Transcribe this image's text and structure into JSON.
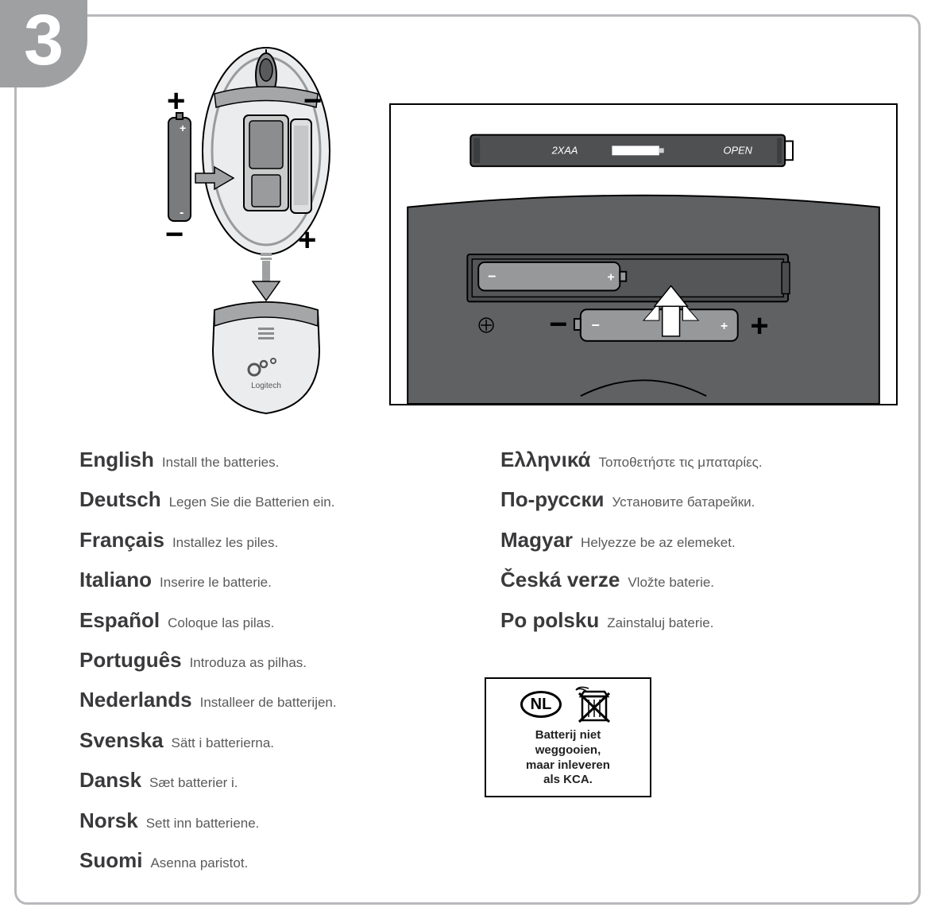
{
  "step_number": "3",
  "diagrams": {
    "mouse": {
      "battery_top_plus": "+",
      "battery_top_minus": "−",
      "battery_bottom_plus": "+",
      "battery_bottom_minus": "−",
      "brand": "Logitech",
      "arrow_color": "#9fa0a2",
      "body_fill": "#ebecee",
      "battery_fill": "#7a7b7d",
      "outline": "#000000"
    },
    "keyboard": {
      "cover_label_left": "2XAA",
      "cover_label_right": "OPEN",
      "body_fill": "#606163",
      "cover_fill": "#4f5052",
      "battery_fill": "#97989a",
      "symbol_plus": "+",
      "symbol_minus": "−",
      "screw_symbol": "⊕",
      "arrow_color": "#ffffff",
      "outline": "#000000",
      "label_color": "#ffffff",
      "frame_bg": "#ffffff"
    }
  },
  "instructions": {
    "left": [
      {
        "lang": "English",
        "text": "Install the batteries."
      },
      {
        "lang": "Deutsch",
        "text": "Legen Sie die Batterien ein."
      },
      {
        "lang": "Français",
        "text": "Installez les piles."
      },
      {
        "lang": "Italiano",
        "text": "Inserire le batterie."
      },
      {
        "lang": "Español",
        "text": "Coloque las pilas."
      },
      {
        "lang": "Português",
        "text": "Introduza as pilhas."
      },
      {
        "lang": "Nederlands",
        "text": "Installeer de batterijen."
      },
      {
        "lang": "Svenska",
        "text": "Sätt i batterierna."
      },
      {
        "lang": "Dansk",
        "text": "Sæt batterier i."
      },
      {
        "lang": "Norsk",
        "text": "Sett inn batteriene."
      },
      {
        "lang": "Suomi",
        "text": "Asenna paristot."
      }
    ],
    "right": [
      {
        "lang": "Ελληνικά",
        "text": "Τοποθετήστε τις μπαταρίες."
      },
      {
        "lang": "По-русски",
        "text": "Установите батарейки."
      },
      {
        "lang": "Magyar",
        "text": "Helyezze be az elemeket."
      },
      {
        "lang": "Česká verze",
        "text": "Vložte baterie."
      },
      {
        "lang": "Po polsku",
        "text": "Zainstaluj baterie."
      }
    ]
  },
  "recycle": {
    "country_code": "NL",
    "line1": "Batterij niet",
    "line2": "weggooien,",
    "line3": "maar inleveren",
    "line4": "als KCA."
  },
  "colors": {
    "frame_border": "#b8b9bb",
    "badge_bg": "#9fa0a2",
    "badge_text": "#ffffff",
    "lang_name": "#3a3a3c",
    "lang_text": "#5a5a5c"
  }
}
